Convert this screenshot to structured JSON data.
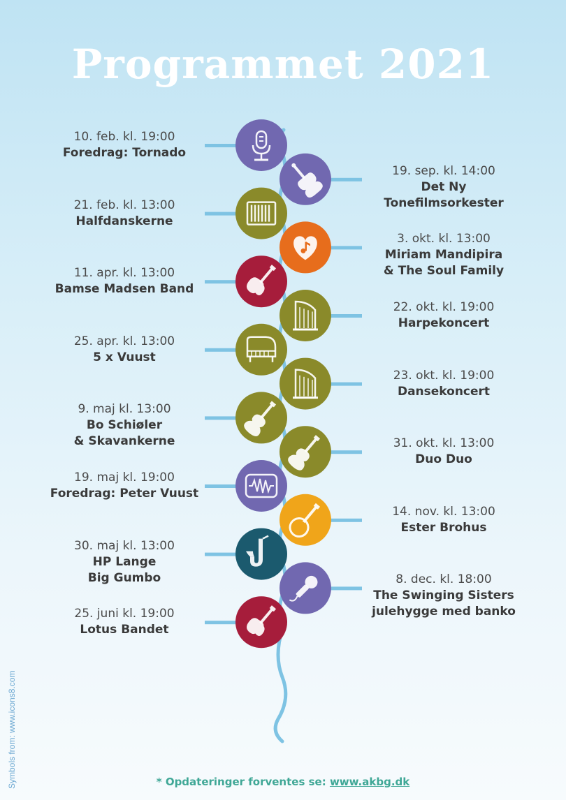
{
  "title": "Programmet 2021",
  "credit": "Symbols from: www.icons8.com",
  "footer": {
    "prefix": "* Opdateringer forventes se: ",
    "link_text": "www.akbg.dk"
  },
  "colors": {
    "line": "#7ec3e3",
    "purple": "#7168b0",
    "olive": "#8a8a2a",
    "orange": "#e76d1c",
    "crimson": "#a61d3b",
    "amber": "#f0a51a",
    "teal": "#1b5a6e"
  },
  "events": [
    {
      "date": "10. feb. kl. 19:00",
      "name": "Foredrag: Tornado",
      "icon": "microphone-icon",
      "color": "purple",
      "side": "left"
    },
    {
      "date": "19. sep. kl. 14:00",
      "name": "Det Ny\nTonefilmsorkester",
      "icon": "violin-icon",
      "color": "purple",
      "side": "right"
    },
    {
      "date": "21. feb. kl. 13:00",
      "name": "Halfdanskerne",
      "icon": "accordion-icon",
      "color": "olive",
      "side": "left"
    },
    {
      "date": "3. okt. kl. 13:00",
      "name": "Miriam Mandipira\n& The Soul Family",
      "icon": "heart-music-icon",
      "color": "orange",
      "side": "right"
    },
    {
      "date": "11. apr. kl. 13:00",
      "name": "Bamse Madsen Band",
      "icon": "electric-guitar-icon",
      "color": "crimson",
      "side": "left"
    },
    {
      "date": "22. okt. kl. 19:00",
      "name": "Harpekoncert",
      "icon": "harp-icon",
      "color": "olive",
      "side": "right"
    },
    {
      "date": "25. apr. kl. 13:00",
      "name": "5 x Vuust",
      "icon": "piano-icon",
      "color": "olive",
      "side": "left"
    },
    {
      "date": "23. okt. kl. 19:00",
      "name": "Dansekoncert",
      "icon": "harp-icon",
      "color": "olive",
      "side": "right"
    },
    {
      "date": "9. maj kl. 13:00",
      "name": "Bo Schiøler\n& Skavankerne",
      "icon": "acoustic-guitar-icon",
      "color": "olive",
      "side": "left"
    },
    {
      "date": "31. okt. kl. 13:00",
      "name": "Duo Duo",
      "icon": "acoustic-guitar-icon",
      "color": "olive",
      "side": "right"
    },
    {
      "date": "19. maj kl. 19:00",
      "name": "Foredrag: Peter Vuust",
      "icon": "sound-wave-icon",
      "color": "purple",
      "side": "left"
    },
    {
      "date": "14. nov. kl. 13:00",
      "name": "Ester Brohus",
      "icon": "banjo-icon",
      "color": "amber",
      "side": "right"
    },
    {
      "date": "30. maj kl. 13:00",
      "name": "HP Lange\nBig Gumbo",
      "icon": "saxophone-icon",
      "color": "teal",
      "side": "left"
    },
    {
      "date": "8. dec. kl. 18:00",
      "name": "The Swinging Sisters\njulehygge med banko",
      "icon": "handheld-microphone-icon",
      "color": "purple",
      "side": "right"
    },
    {
      "date": "25. juni kl. 19:00",
      "name": "Lotus Bandet",
      "icon": "electric-guitar-icon",
      "color": "crimson",
      "side": "left"
    }
  ]
}
